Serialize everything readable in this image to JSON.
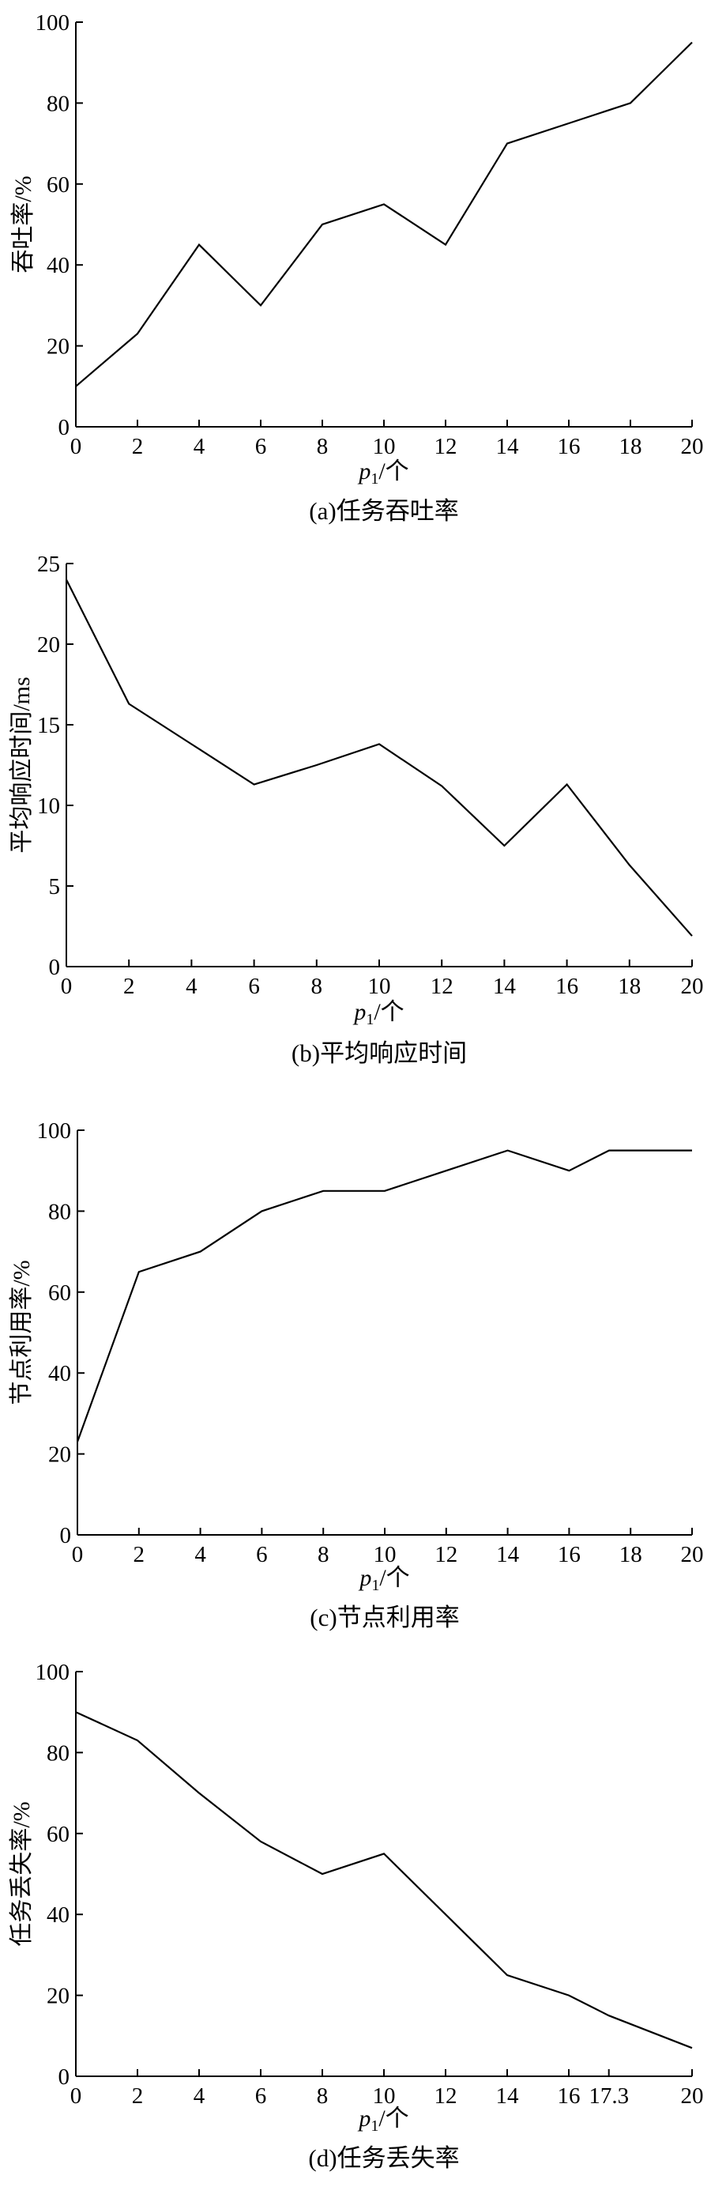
{
  "chart_data": [
    {
      "type": "line",
      "caption": "(a)任务吞吐率",
      "xlabel_main": "p",
      "xlabel_sub": "1",
      "xlabel_unit": "/个",
      "ylabel": "吞吐率/%",
      "xlim": [
        0,
        20
      ],
      "ylim": [
        0,
        100
      ],
      "x_ticks": [
        0,
        2,
        4,
        6,
        8,
        10,
        12,
        14,
        16,
        18,
        20
      ],
      "y_ticks": [
        0,
        20,
        40,
        60,
        80,
        100
      ],
      "grid": false,
      "x": [
        0,
        2,
        4,
        6,
        8,
        10,
        12,
        14,
        16,
        18,
        20
      ],
      "y": [
        10,
        23,
        45,
        30,
        50,
        55,
        45,
        70,
        75,
        80,
        95
      ]
    },
    {
      "type": "line",
      "caption": "(b)平均响应时间",
      "xlabel_main": "p",
      "xlabel_sub": "1",
      "xlabel_unit": "/个",
      "ylabel": "平均响应时间/ms",
      "xlim": [
        0,
        20
      ],
      "ylim": [
        0,
        25
      ],
      "x_ticks": [
        0,
        2,
        4,
        6,
        8,
        10,
        12,
        14,
        16,
        18,
        20
      ],
      "y_ticks": [
        0,
        5,
        10,
        15,
        20,
        25
      ],
      "grid": false,
      "x": [
        0,
        2,
        4,
        6,
        8,
        10,
        12,
        14,
        16,
        18,
        20
      ],
      "y": [
        24,
        16.3,
        13.8,
        11.3,
        12.5,
        13.8,
        11.2,
        7.5,
        11.3,
        6.3,
        1.9
      ]
    },
    {
      "type": "line",
      "caption": "(c)节点利用率",
      "xlabel_main": "p",
      "xlabel_sub": "1",
      "xlabel_unit": "/个",
      "ylabel": "节点利用率/%",
      "xlim": [
        0,
        20
      ],
      "ylim": [
        0,
        100
      ],
      "x_ticks": [
        0,
        2,
        4,
        6,
        8,
        10,
        12,
        14,
        16,
        18,
        20
      ],
      "y_ticks": [
        0,
        20,
        40,
        60,
        80,
        100
      ],
      "grid": false,
      "x": [
        0,
        2,
        4,
        6,
        8,
        10,
        12,
        14,
        16,
        17.3,
        20
      ],
      "y": [
        23,
        65,
        70,
        80,
        85,
        85,
        90,
        95,
        90,
        95,
        95
      ]
    },
    {
      "type": "line",
      "caption": "(d)任务丢失率",
      "xlabel_main": "p",
      "xlabel_sub": "1",
      "xlabel_unit": "/个",
      "ylabel": "任务丢失率/%",
      "xlim": [
        0,
        20
      ],
      "ylim": [
        0,
        100
      ],
      "x_ticks": [
        0,
        2,
        4,
        6,
        8,
        10,
        12,
        14,
        16,
        17.3,
        20
      ],
      "y_ticks": [
        0,
        20,
        40,
        60,
        80,
        100
      ],
      "grid": false,
      "x": [
        0,
        2,
        4,
        6,
        8,
        10,
        12,
        14,
        16,
        17.3,
        20
      ],
      "y": [
        90,
        83,
        70,
        58,
        50,
        55,
        40,
        25,
        20,
        15,
        7
      ]
    }
  ]
}
